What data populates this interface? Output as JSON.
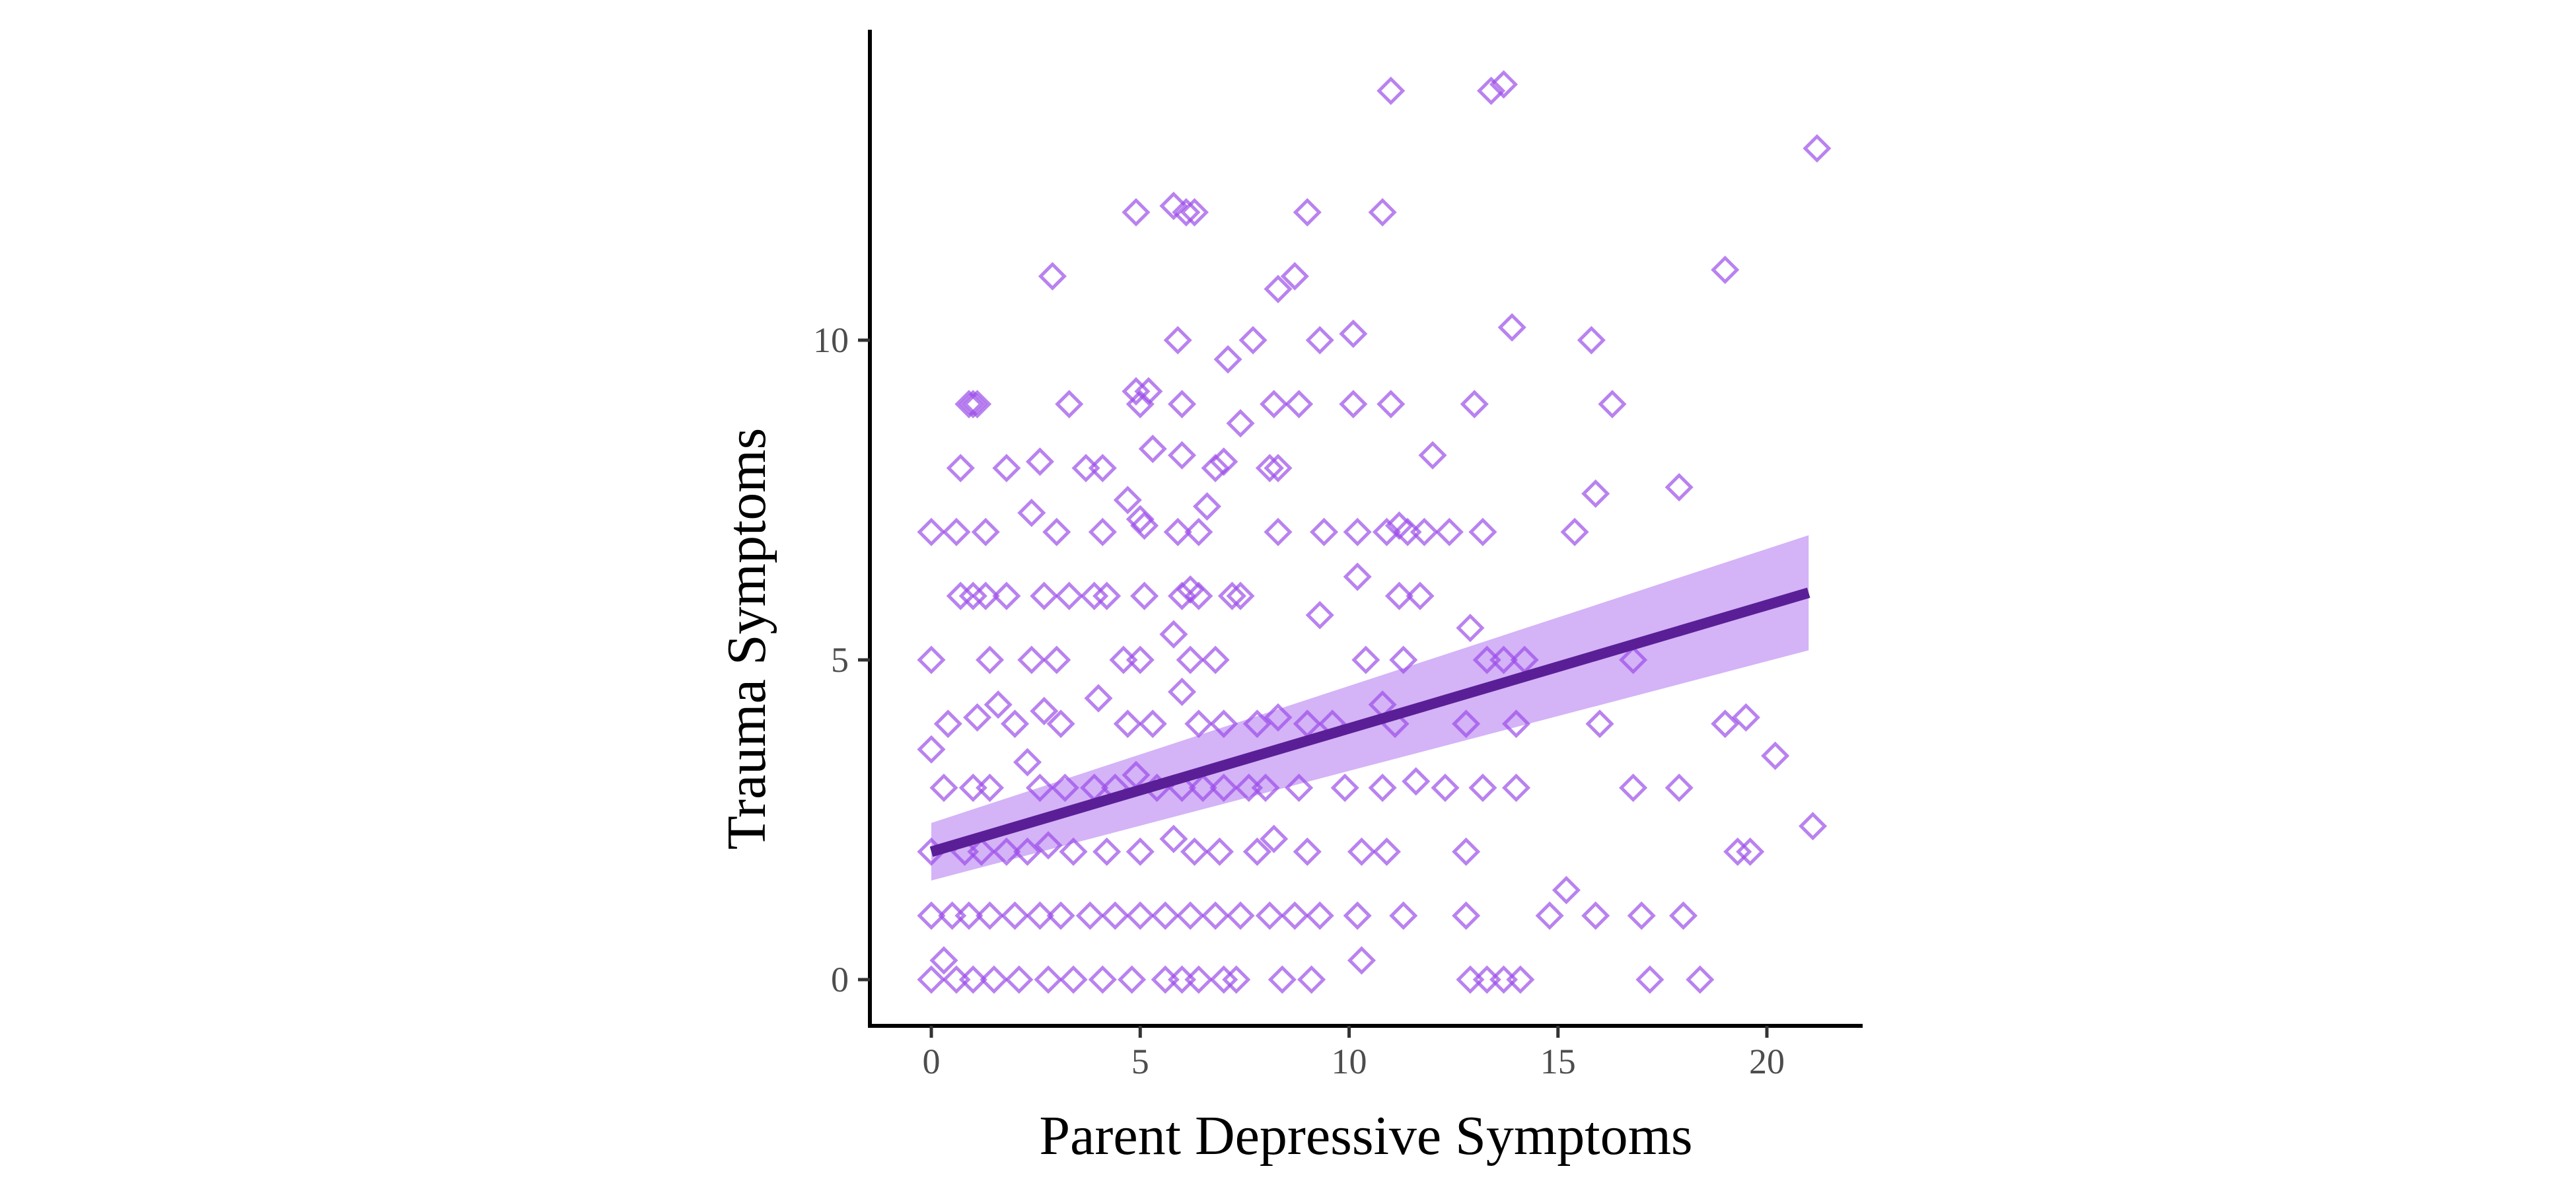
{
  "chart_data": {
    "type": "scatter",
    "xlabel": "Parent Depressive Symptoms",
    "ylabel": "Trauma Symptoms",
    "xlim": [
      -1.5,
      22.5
    ],
    "ylim": [
      -0.7,
      14.5
    ],
    "x_ticks": [
      0,
      5,
      10,
      15,
      20
    ],
    "y_ticks": [
      0,
      5,
      10
    ],
    "x_tick_labels": [
      "0",
      "5",
      "10",
      "15",
      "20"
    ],
    "y_tick_labels": [
      "0",
      "5",
      "10"
    ],
    "grid": false,
    "marker": "open-diamond",
    "colors": {
      "points": "#9b4de8",
      "fit_line": "#5a1f96",
      "ribbon": "#c9a0f5"
    },
    "fit": {
      "type": "linear",
      "x": [
        0,
        21
      ],
      "y": [
        2.0,
        6.05
      ],
      "ci_lower": [
        1.55,
        5.15
      ],
      "ci_upper": [
        2.45,
        6.95
      ]
    },
    "points": [
      [
        11.0,
        13.9
      ],
      [
        13.4,
        13.9
      ],
      [
        13.7,
        14.0
      ],
      [
        21.2,
        13.0
      ],
      [
        4.9,
        12.0
      ],
      [
        5.8,
        12.1
      ],
      [
        6.1,
        12.0
      ],
      [
        6.3,
        12.0
      ],
      [
        9.0,
        12.0
      ],
      [
        10.8,
        12.0
      ],
      [
        2.9,
        11.0
      ],
      [
        8.7,
        11.0
      ],
      [
        19.0,
        11.1
      ],
      [
        8.3,
        10.8
      ],
      [
        5.9,
        10.0
      ],
      [
        7.7,
        10.0
      ],
      [
        9.3,
        10.0
      ],
      [
        10.1,
        10.1
      ],
      [
        13.9,
        10.2
      ],
      [
        15.8,
        10.0
      ],
      [
        7.1,
        9.7
      ],
      [
        0.9,
        9.0
      ],
      [
        1.0,
        9.0
      ],
      [
        1.1,
        9.0
      ],
      [
        3.3,
        9.0
      ],
      [
        4.9,
        9.2
      ],
      [
        5.2,
        9.2
      ],
      [
        5.0,
        9.0
      ],
      [
        6.0,
        9.0
      ],
      [
        8.2,
        9.0
      ],
      [
        8.8,
        9.0
      ],
      [
        10.1,
        9.0
      ],
      [
        11.0,
        9.0
      ],
      [
        13.0,
        9.0
      ],
      [
        16.3,
        9.0
      ],
      [
        7.4,
        8.7
      ],
      [
        2.6,
        8.1
      ],
      [
        3.7,
        8.0
      ],
      [
        4.1,
        8.0
      ],
      [
        5.3,
        8.3
      ],
      [
        6.0,
        8.2
      ],
      [
        6.8,
        8.0
      ],
      [
        7.0,
        8.1
      ],
      [
        8.1,
        8.0
      ],
      [
        8.3,
        8.0
      ],
      [
        12.0,
        8.2
      ],
      [
        0.7,
        8.0
      ],
      [
        1.8,
        8.0
      ],
      [
        4.7,
        7.5
      ],
      [
        5.1,
        7.1
      ],
      [
        6.4,
        7.0
      ],
      [
        6.6,
        7.4
      ],
      [
        15.9,
        7.6
      ],
      [
        17.9,
        7.7
      ],
      [
        0.0,
        7.0
      ],
      [
        0.6,
        7.0
      ],
      [
        1.3,
        7.0
      ],
      [
        2.4,
        7.3
      ],
      [
        3.0,
        7.0
      ],
      [
        4.1,
        7.0
      ],
      [
        5.0,
        7.2
      ],
      [
        5.9,
        7.0
      ],
      [
        8.3,
        7.0
      ],
      [
        9.4,
        7.0
      ],
      [
        10.2,
        7.0
      ],
      [
        10.9,
        7.0
      ],
      [
        11.2,
        7.1
      ],
      [
        11.4,
        7.0
      ],
      [
        11.8,
        7.0
      ],
      [
        12.4,
        7.0
      ],
      [
        13.2,
        7.0
      ],
      [
        15.4,
        7.0
      ],
      [
        0.7,
        6.0
      ],
      [
        1.0,
        6.0
      ],
      [
        1.3,
        6.0
      ],
      [
        1.8,
        6.0
      ],
      [
        2.7,
        6.0
      ],
      [
        3.3,
        6.0
      ],
      [
        3.9,
        6.0
      ],
      [
        4.2,
        6.0
      ],
      [
        5.1,
        6.0
      ],
      [
        6.0,
        6.0
      ],
      [
        6.2,
        6.1
      ],
      [
        6.4,
        6.0
      ],
      [
        7.2,
        6.0
      ],
      [
        7.4,
        6.0
      ],
      [
        10.2,
        6.3
      ],
      [
        11.2,
        6.0
      ],
      [
        11.7,
        6.0
      ],
      [
        1.4,
        5.0
      ],
      [
        0.0,
        5.0
      ],
      [
        2.4,
        5.0
      ],
      [
        3.0,
        5.0
      ],
      [
        4.6,
        5.0
      ],
      [
        5.0,
        5.0
      ],
      [
        5.8,
        5.4
      ],
      [
        6.2,
        5.0
      ],
      [
        6.8,
        5.0
      ],
      [
        9.3,
        5.7
      ],
      [
        10.4,
        5.0
      ],
      [
        11.3,
        5.0
      ],
      [
        12.9,
        5.5
      ],
      [
        13.3,
        5.0
      ],
      [
        13.7,
        5.0
      ],
      [
        14.2,
        5.0
      ],
      [
        16.8,
        5.0
      ],
      [
        0.4,
        4.0
      ],
      [
        1.1,
        4.1
      ],
      [
        1.6,
        4.3
      ],
      [
        2.0,
        4.0
      ],
      [
        2.7,
        4.2
      ],
      [
        3.1,
        4.0
      ],
      [
        4.0,
        4.4
      ],
      [
        4.7,
        4.0
      ],
      [
        5.3,
        4.0
      ],
      [
        6.0,
        4.5
      ],
      [
        6.4,
        4.0
      ],
      [
        7.0,
        4.0
      ],
      [
        7.8,
        4.0
      ],
      [
        8.3,
        4.1
      ],
      [
        9.0,
        4.0
      ],
      [
        9.6,
        4.0
      ],
      [
        10.8,
        4.3
      ],
      [
        11.1,
        4.0
      ],
      [
        12.8,
        4.0
      ],
      [
        14.0,
        4.0
      ],
      [
        16.0,
        4.0
      ],
      [
        19.0,
        4.0
      ],
      [
        19.5,
        4.1
      ],
      [
        20.2,
        3.5
      ],
      [
        0.0,
        3.6
      ],
      [
        0.3,
        3.0
      ],
      [
        1.0,
        3.0
      ],
      [
        1.4,
        3.0
      ],
      [
        2.3,
        3.4
      ],
      [
        2.6,
        3.0
      ],
      [
        3.2,
        3.0
      ],
      [
        3.9,
        3.0
      ],
      [
        4.4,
        3.0
      ],
      [
        4.9,
        3.2
      ],
      [
        5.4,
        3.0
      ],
      [
        6.0,
        3.0
      ],
      [
        6.5,
        3.0
      ],
      [
        7.0,
        3.0
      ],
      [
        7.6,
        3.0
      ],
      [
        8.0,
        3.0
      ],
      [
        8.8,
        3.0
      ],
      [
        9.9,
        3.0
      ],
      [
        10.8,
        3.0
      ],
      [
        11.6,
        3.1
      ],
      [
        12.3,
        3.0
      ],
      [
        13.2,
        3.0
      ],
      [
        14.0,
        3.0
      ],
      [
        16.8,
        3.0
      ],
      [
        17.9,
        3.0
      ],
      [
        0.0,
        2.0
      ],
      [
        0.8,
        2.0
      ],
      [
        1.2,
        2.0
      ],
      [
        1.8,
        2.0
      ],
      [
        2.3,
        2.0
      ],
      [
        2.8,
        2.1
      ],
      [
        3.4,
        2.0
      ],
      [
        4.2,
        2.0
      ],
      [
        5.0,
        2.0
      ],
      [
        5.8,
        2.2
      ],
      [
        6.3,
        2.0
      ],
      [
        6.9,
        2.0
      ],
      [
        7.8,
        2.0
      ],
      [
        8.2,
        2.2
      ],
      [
        9.0,
        2.0
      ],
      [
        10.3,
        2.0
      ],
      [
        10.9,
        2.0
      ],
      [
        12.8,
        2.0
      ],
      [
        19.3,
        2.0
      ],
      [
        19.6,
        2.0
      ],
      [
        21.1,
        2.4
      ],
      [
        0.0,
        1.0
      ],
      [
        0.5,
        1.0
      ],
      [
        0.9,
        1.0
      ],
      [
        1.4,
        1.0
      ],
      [
        2.0,
        1.0
      ],
      [
        2.6,
        1.0
      ],
      [
        3.1,
        1.0
      ],
      [
        3.8,
        1.0
      ],
      [
        4.4,
        1.0
      ],
      [
        5.0,
        1.0
      ],
      [
        5.6,
        1.0
      ],
      [
        6.2,
        1.0
      ],
      [
        6.8,
        1.0
      ],
      [
        7.4,
        1.0
      ],
      [
        8.1,
        1.0
      ],
      [
        8.7,
        1.0
      ],
      [
        9.3,
        1.0
      ],
      [
        10.2,
        1.0
      ],
      [
        11.3,
        1.0
      ],
      [
        12.8,
        1.0
      ],
      [
        14.8,
        1.0
      ],
      [
        15.2,
        1.4
      ],
      [
        15.9,
        1.0
      ],
      [
        17.0,
        1.0
      ],
      [
        18.0,
        1.0
      ],
      [
        0.0,
        0.0
      ],
      [
        0.3,
        0.3
      ],
      [
        0.6,
        0.0
      ],
      [
        1.0,
        0.0
      ],
      [
        1.5,
        0.0
      ],
      [
        2.1,
        0.0
      ],
      [
        2.8,
        0.0
      ],
      [
        3.4,
        0.0
      ],
      [
        4.1,
        0.0
      ],
      [
        4.8,
        0.0
      ],
      [
        5.6,
        0.0
      ],
      [
        6.0,
        0.0
      ],
      [
        6.4,
        0.0
      ],
      [
        7.0,
        0.0
      ],
      [
        7.3,
        0.0
      ],
      [
        8.4,
        0.0
      ],
      [
        9.1,
        0.0
      ],
      [
        10.3,
        0.3
      ],
      [
        12.9,
        0.0
      ],
      [
        13.3,
        0.0
      ],
      [
        13.7,
        0.0
      ],
      [
        14.1,
        0.0
      ],
      [
        17.2,
        0.0
      ],
      [
        18.4,
        0.0
      ]
    ]
  }
}
